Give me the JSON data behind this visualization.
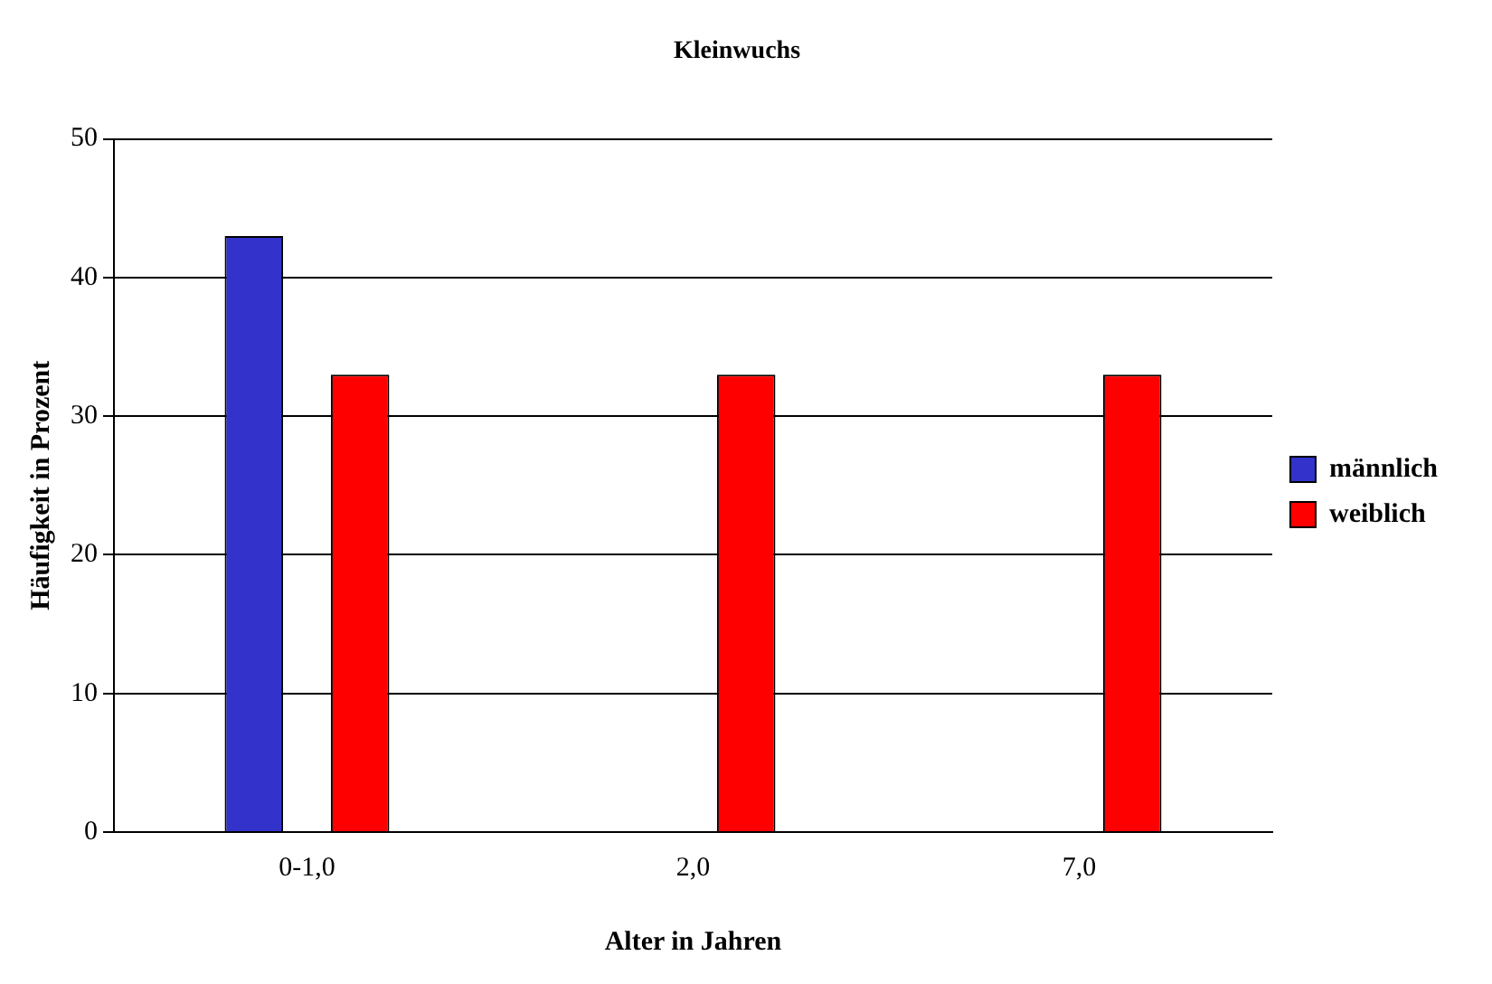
{
  "chart_data": {
    "type": "bar",
    "title": "Kleinwuchs",
    "xlabel": "Alter in Jahren",
    "ylabel": "Häufigkeit in Prozent",
    "categories": [
      "0-1,0",
      "2,0",
      "7,0"
    ],
    "series": [
      {
        "name": "männlich",
        "color": "#3333cc",
        "values": [
          43,
          null,
          null
        ]
      },
      {
        "name": "weiblich",
        "color": "#ff0000",
        "values": [
          33,
          33,
          33
        ]
      }
    ],
    "ylim": [
      0,
      50
    ],
    "yticks": [
      0,
      10,
      20,
      30,
      40,
      50
    ],
    "grid": "y",
    "legend": "right"
  }
}
